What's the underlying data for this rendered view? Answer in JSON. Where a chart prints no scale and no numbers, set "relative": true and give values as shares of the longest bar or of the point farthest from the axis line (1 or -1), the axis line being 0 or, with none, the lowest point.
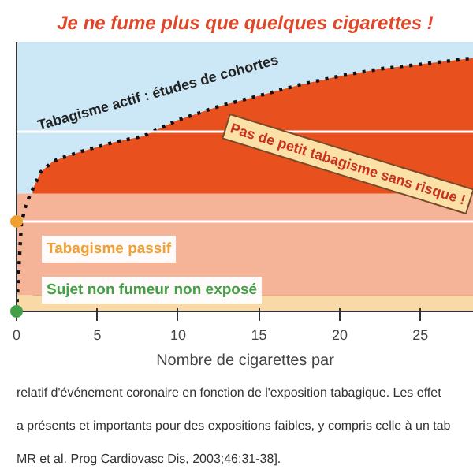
{
  "chart_data": {
    "type": "line",
    "relative": true,
    "title": "Je ne fume plus que quelques cigarettes !",
    "xlabel": "Nombre de cigarettes par",
    "x": [
      0,
      0.15,
      0.3,
      0.6,
      1,
      1.5,
      2.25,
      3,
      4,
      5,
      6,
      7.8,
      10,
      12.5,
      15,
      17.5,
      20,
      22.5,
      25,
      28.3
    ],
    "series": [
      {
        "color": "#111111",
        "line_style": "dotted",
        "values": [
          0,
          0.177,
          0.348,
          0.426,
          0.482,
          0.55,
          0.592,
          0.61,
          0.631,
          0.649,
          0.667,
          0.691,
          0.755,
          0.809,
          0.851,
          0.894,
          0.929,
          0.957,
          0.975,
          1
        ]
      },
      {
        "type": "area",
        "color": "#e8501e",
        "values": [
          null,
          null,
          null,
          null,
          0.482,
          0.55,
          0.592,
          0.61,
          0.631,
          0.649,
          0.667,
          0.691,
          0.755,
          0.809,
          0.851,
          0.894,
          0.929,
          0.957,
          0.975,
          1
        ]
      },
      {
        "type": "scatter",
        "marker": "circle",
        "x": [
          0,
          0
        ],
        "values": [
          0.355,
          0
        ],
        "colors": [
          "#f0a030",
          "#43a047"
        ]
      }
    ],
    "bands": [
      {
        "axis": "y",
        "from": 0,
        "to": 0.064,
        "color": "#fad9a8"
      },
      {
        "axis": "y",
        "from": 0.064,
        "to": 0.465,
        "color": "#f5b497"
      },
      {
        "axis": "y",
        "from": 0.465,
        "to": 1.064,
        "color": "#cce7f5"
      }
    ],
    "ref_lines": [
      {
        "axis": "y",
        "value": 0.355,
        "color": "#ffffff"
      },
      {
        "axis": "y",
        "value": 0.709,
        "color": "#ffffff"
      }
    ],
    "xlim": [
      0,
      28.3
    ],
    "xticks": [
      0,
      5,
      10,
      15,
      20,
      25
    ],
    "grid": false,
    "annotations": [
      "Tabagisme passif",
      "Sujet non fumeur non exposé",
      {
        "text": "Tabagisme actif : études de cohortes",
        "x": 7.8,
        "y": 0.691
      },
      "Pas de petit tabagisme sans risque !",
      "relatif d'événement coronaire en fonction de l'exposition tabagique. Les effet",
      "a présents et importants pour des expositions faibles, y compris celle à un tab",
      "MR et al. Prog Cardiovasc Dis, 2003;46:31-38]."
    ]
  }
}
